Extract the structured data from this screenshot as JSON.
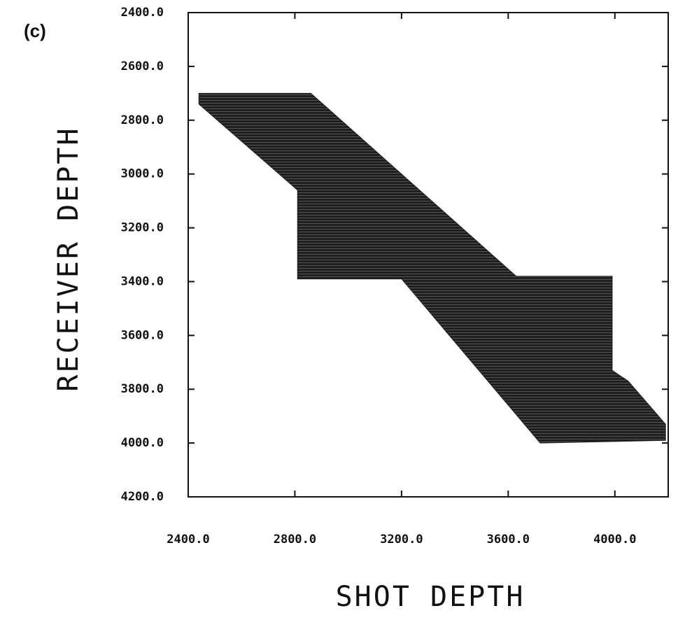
{
  "chart_data": {
    "type": "polygon",
    "panel_label": "(c)",
    "x_label": "SHOT DEPTH",
    "y_label": "RECEIVER DEPTH",
    "x": [
      2440,
      2860,
      3630,
      3990,
      3990,
      4050,
      4190,
      4190,
      3720,
      3200,
      2810,
      2810,
      2440
    ],
    "y": [
      2700,
      2700,
      3380,
      3380,
      3730,
      3770,
      3930,
      3990,
      4000,
      3390,
      3390,
      3060,
      2740
    ],
    "color": "#1e1e1e",
    "xlim": [
      2400,
      4200
    ],
    "xticks": [
      {
        "value": 2400,
        "label": "2400.0"
      },
      {
        "value": 2800,
        "label": "2800.0"
      },
      {
        "value": 3200,
        "label": "3200.0"
      },
      {
        "value": 3600,
        "label": "3600.0"
      },
      {
        "value": 4000,
        "label": "4000.0"
      }
    ],
    "ylim": [
      2400,
      4200
    ],
    "y_inverted": true,
    "yticks": [
      {
        "value": 2400,
        "label": "2400.0"
      },
      {
        "value": 2600,
        "label": "2600.0"
      },
      {
        "value": 2800,
        "label": "2800.0"
      },
      {
        "value": 3000,
        "label": "3000.0"
      },
      {
        "value": 3200,
        "label": "3200.0"
      },
      {
        "value": 3400,
        "label": "3400.0"
      },
      {
        "value": 3600,
        "label": "3600.0"
      },
      {
        "value": 3800,
        "label": "3800.0"
      },
      {
        "value": 4000,
        "label": "4000.0"
      },
      {
        "value": 4200,
        "label": "4200.0"
      }
    ]
  }
}
